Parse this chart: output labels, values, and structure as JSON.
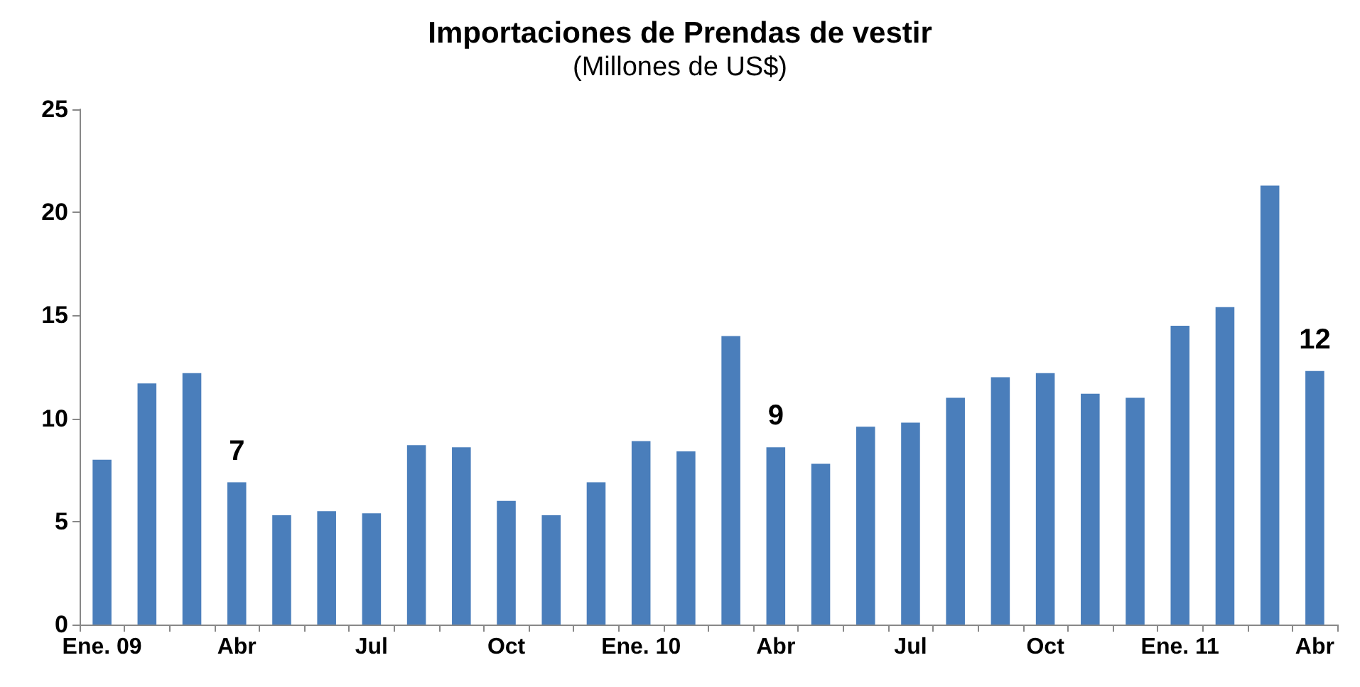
{
  "chart_data": {
    "type": "bar",
    "title": "Importaciones de Prendas de vestir",
    "subtitle": "(Millones de US$)",
    "categories": [
      "Ene. 09",
      null,
      null,
      "Abr",
      null,
      null,
      "Jul",
      null,
      null,
      "Oct",
      null,
      null,
      "Ene. 10",
      null,
      null,
      "Abr",
      null,
      null,
      "Jul",
      null,
      null,
      "Oct",
      null,
      null,
      "Ene. 11",
      null,
      null,
      "Abr"
    ],
    "values": [
      8.0,
      11.7,
      12.2,
      6.9,
      5.3,
      5.5,
      5.4,
      8.7,
      8.6,
      6.0,
      5.3,
      6.9,
      8.9,
      8.4,
      14.0,
      8.6,
      7.8,
      9.6,
      9.8,
      11.0,
      12.0,
      12.2,
      11.2,
      11.0,
      14.5,
      15.4,
      21.3,
      12.3
    ],
    "value_labels": [
      null,
      null,
      null,
      "7",
      null,
      null,
      null,
      null,
      null,
      null,
      null,
      null,
      null,
      null,
      null,
      "9",
      null,
      null,
      null,
      null,
      null,
      null,
      null,
      null,
      null,
      null,
      null,
      "12"
    ],
    "color": "#4a7ebb",
    "ylim": [
      0,
      25
    ],
    "yticks": [
      0,
      5,
      10,
      15,
      20,
      25
    ]
  }
}
